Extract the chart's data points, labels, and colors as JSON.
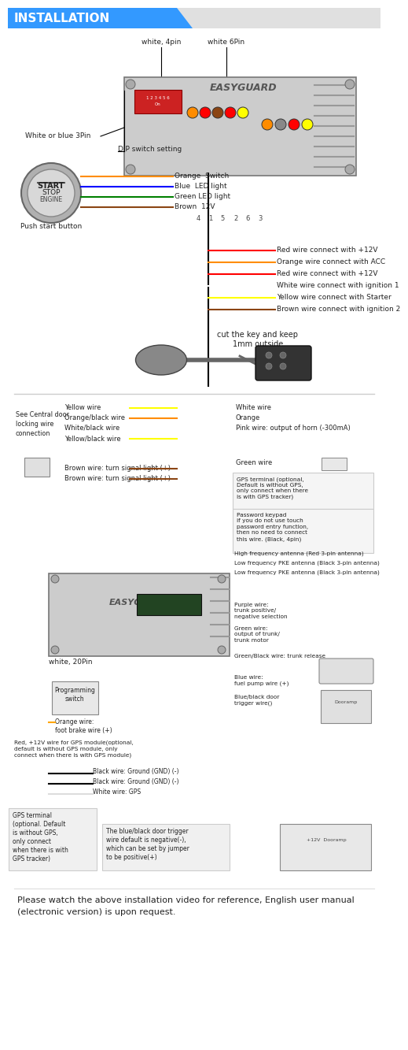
{
  "title": "INSTALLATION",
  "body_bg": "#ffffff",
  "header_bg": "#3399ff",
  "top_labels": [
    "white, 4pin",
    "white 6Pin"
  ],
  "white_blue_3pin": "White or blue 3Pin",
  "dip_switch": "DIP switch setting",
  "push_start_label": "Push start button",
  "start_stop_text": [
    "START",
    "STOP",
    "ENGINE"
  ],
  "left_wire_labels": [
    "Orange  Switch",
    "Blue  LED light",
    "Green LED light",
    "Brown  12V"
  ],
  "left_wire_colors": [
    "#ff8c00",
    "#0000ff",
    "#008000",
    "#8B4513"
  ],
  "pin_nums": [
    "4",
    "1",
    "5",
    "2",
    "6",
    "3"
  ],
  "wire_data": [
    {
      "color": "#ff0000",
      "label": "Red wire connect with +12V"
    },
    {
      "color": "#ff8c00",
      "label": "Orange wire connect with ACC"
    },
    {
      "color": "#ff0000",
      "label": "Red wire connect with +12V"
    },
    {
      "color": "#ffffff",
      "label": "White wire connect with ignition 1"
    },
    {
      "color": "#ffff00",
      "label": "Yellow wire connect with Starter"
    },
    {
      "color": "#8B4513",
      "label": "Brown wire connect with ignition 2"
    }
  ],
  "cut_key_text": "cut the key and keep\n1mm outside",
  "s2_left_labels": [
    "Yellow wire",
    "Orange/black wire",
    "White/black wire",
    "Yellow/black wire",
    "",
    "Brown wire: turn signal light (+)",
    "Brown wire: turn signal light (+)"
  ],
  "s2_left_colors": [
    "#ffff00",
    "#ff8c00",
    "#ffffff",
    "#ffff00",
    null,
    "#8B4513",
    "#8B4513"
  ],
  "see_central": "See Central door\nlocking wire\nconnection",
  "s2_right_labels": [
    "White wire",
    "Orange",
    "Pink wire: output of horn (-300mA)",
    "",
    "Green wire"
  ],
  "gps_text": "GPS terminal (optional,\nDefault is without GPS,\nonly connect when there\nis with GPS tracker)",
  "pwd_text": "Password keypad\nif you do not use touch\npassword entry function,\nthen no need to connect\nthis wire. (Black, 4pin)",
  "ant_labels": [
    "High frequency antenna (Red 3-pin antenna)",
    "Low frequency PKE antenna (Black 3-pin antenna)",
    "Low frequency PKE antenna (Black 3-pin antenna)"
  ],
  "white_20pin": "white, 20Pin",
  "prog_switch": "Programming\nswitch",
  "orange_brake": "Orange wire:\nfoot brake wire (+)",
  "red_gps": "Red, +12V wire for GPS module(optional,\ndefault is without GPS module, only\nconnect when there is with GPS module)",
  "gnd1": "Black wire: Ground (GND) (-)",
  "gnd2": "Black wire: Ground (GND) (-)",
  "white_gps": "White wire: GPS",
  "right_bottom": [
    {
      "label": "Purple wire:\ntrunk positive/\nnegative selection",
      "color": "#800080"
    },
    {
      "label": "Green wire:\noutput of trunk/\ntrunk motor",
      "color": "#008000"
    },
    {
      "label": "Green/Black wire: trunk release",
      "color": "#008000"
    },
    {
      "label": "Blue wire:\nfuel pump wire (+)",
      "color": "#0000ff"
    },
    {
      "label": "Blue/black door\ntrigger wire()",
      "color": "#0000aa"
    }
  ],
  "gps_box_text": "GPS terminal\n(optional. Default\nis without GPS,\nonly connect\nwhen there is with\nGPS tracker)",
  "blue_door_text": "The blue/black door trigger\nwire default is negative(-),\nwhich can be set by jumper\nto be positive(+)",
  "footer_text": "Please watch the above installation video for reference, English user manual\n(electronic version) is upon request."
}
